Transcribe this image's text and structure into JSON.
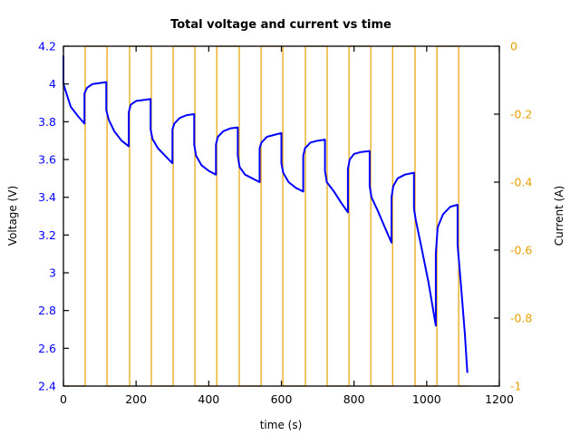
{
  "chart_data": {
    "type": "line",
    "title": "Total voltage and current vs time",
    "xlabel": "time (s)",
    "ylabel": "Voltage (V)",
    "y2label": "Current (A)",
    "xlim": [
      0,
      1200
    ],
    "ylim": [
      2.4,
      4.2
    ],
    "y2lim": [
      -1,
      0
    ],
    "xticks": [
      "0",
      "200",
      "400",
      "600",
      "800",
      "1000",
      "1200"
    ],
    "yticks": [
      "4.2",
      "4",
      "3.8",
      "3.6",
      "3.4",
      "3.2",
      "3",
      "2.8",
      "2.6",
      "2.4"
    ],
    "y2ticks": [
      "0",
      "-0.2",
      "-0.4",
      "-0.6",
      "-0.8",
      "-1"
    ],
    "grid": false,
    "legend": null,
    "series": [
      {
        "name": "Voltage (V)",
        "axis": "left",
        "color": "#0000ff",
        "x": [
          0,
          0,
          5,
          20,
          40,
          58,
          58,
          65,
          80,
          100,
          118,
          118,
          125,
          140,
          160,
          180,
          180,
          185,
          200,
          220,
          240,
          240,
          245,
          260,
          280,
          300,
          300,
          305,
          320,
          340,
          360,
          360,
          365,
          380,
          400,
          420,
          420,
          425,
          440,
          460,
          480,
          480,
          485,
          500,
          520,
          540,
          540,
          545,
          560,
          580,
          600,
          600,
          605,
          620,
          640,
          660,
          660,
          665,
          680,
          700,
          720,
          720,
          725,
          745,
          765,
          783,
          783,
          788,
          800,
          820,
          843,
          843,
          848,
          865,
          885,
          903,
          903,
          908,
          920,
          940,
          965,
          965,
          970,
          985,
          1005,
          1025,
          1025,
          1030,
          1045,
          1065,
          1085,
          1085,
          1095,
          1105,
          1112
        ],
        "y": [
          4.15,
          4.0,
          3.97,
          3.88,
          3.83,
          3.79,
          3.95,
          3.98,
          4.0,
          4.005,
          4.01,
          3.86,
          3.81,
          3.75,
          3.7,
          3.67,
          3.85,
          3.89,
          3.91,
          3.915,
          3.92,
          3.76,
          3.71,
          3.66,
          3.62,
          3.58,
          3.76,
          3.79,
          3.82,
          3.835,
          3.84,
          3.68,
          3.62,
          3.57,
          3.54,
          3.52,
          3.68,
          3.72,
          3.75,
          3.765,
          3.77,
          3.62,
          3.56,
          3.52,
          3.5,
          3.48,
          3.66,
          3.69,
          3.72,
          3.73,
          3.74,
          3.58,
          3.53,
          3.48,
          3.45,
          3.43,
          3.62,
          3.66,
          3.69,
          3.7,
          3.705,
          3.54,
          3.48,
          3.43,
          3.37,
          3.32,
          3.55,
          3.6,
          3.63,
          3.64,
          3.645,
          3.46,
          3.4,
          3.33,
          3.24,
          3.16,
          3.4,
          3.46,
          3.5,
          3.52,
          3.53,
          3.34,
          3.28,
          3.14,
          2.95,
          2.72,
          3.1,
          3.24,
          3.31,
          3.35,
          3.36,
          3.15,
          2.92,
          2.68,
          2.47
        ]
      },
      {
        "name": "Current (A)",
        "axis": "right",
        "color": "#e69f00",
        "x": [
          0,
          60,
          60,
          120,
          120,
          182,
          182,
          242,
          242,
          302,
          302,
          362,
          362,
          422,
          422,
          484,
          484,
          544,
          544,
          604,
          604,
          666,
          666,
          726,
          726,
          786,
          786,
          846,
          846,
          906,
          906,
          968,
          968,
          1028,
          1028,
          1088,
          1088,
          1112
        ],
        "y": [
          -1,
          -1,
          0,
          0,
          -1,
          -1,
          0,
          0,
          -1,
          -1,
          0,
          0,
          -1,
          -1,
          0,
          0,
          -1,
          -1,
          0,
          0,
          -1,
          -1,
          0,
          0,
          -1,
          -1,
          0,
          0,
          -1,
          -1,
          0,
          0,
          -1,
          -1,
          0,
          0,
          -1,
          -1
        ]
      }
    ]
  }
}
